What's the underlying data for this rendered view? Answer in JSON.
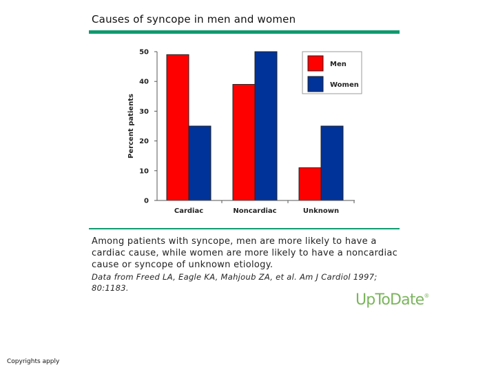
{
  "header": {
    "title": "Causes of syncope in men and women"
  },
  "chart_data": {
    "type": "bar",
    "categories": [
      "Cardiac",
      "Noncardiac",
      "Unknown"
    ],
    "series": [
      {
        "name": "Men",
        "values": [
          49,
          39,
          11
        ],
        "color": "#ff0000"
      },
      {
        "name": "Women",
        "values": [
          25,
          50,
          25
        ],
        "color": "#003399"
      }
    ],
    "ylabel": "Percent patients",
    "xlabel": "",
    "ylim": [
      0,
      50
    ],
    "yticks": [
      "0",
      "10",
      "20",
      "30",
      "40",
      "50"
    ],
    "legend_position": "top-right",
    "grid": false
  },
  "caption": {
    "text": "Among patients with syncope, men are more likely to have a cardiac cause, while women are more likely to have a noncardiac cause or syncope of unknown etiology.",
    "citation": "Data from Freed LA, Eagle KA, Mahjoub ZA, et al. Am J Cardiol 1997; 80:1183."
  },
  "logo": {
    "text": "UpToDate",
    "mark": "®"
  },
  "footer": {
    "copyright": "Copyrights apply"
  },
  "colors": {
    "accent_rule": "#0f9a6e",
    "logo": "#7ab55c"
  }
}
